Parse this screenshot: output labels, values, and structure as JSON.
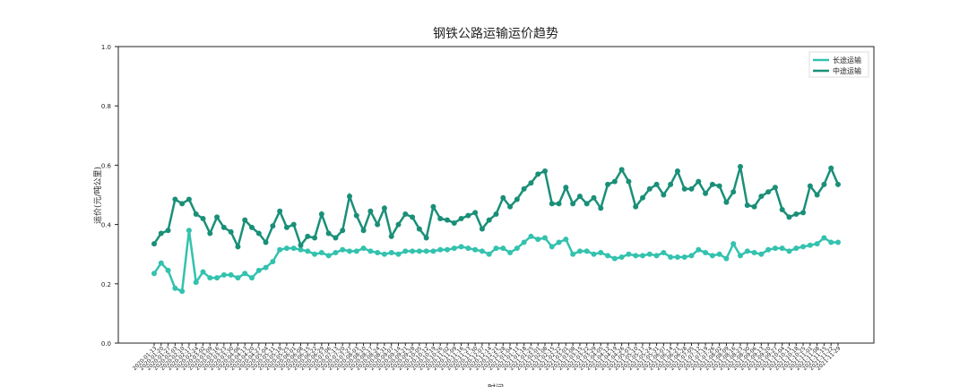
{
  "chart_data": {
    "type": "line",
    "title": "钢铁公路运输运价趋势",
    "x_label": "时间",
    "y_label": "运价(元/吨公里)",
    "categories": [
      "2020-01-13",
      "2020-01-20",
      "2020-01-27",
      "2020-02-03",
      "2020-02-10",
      "2020-02-17",
      "2020-02-24",
      "2020-03-02",
      "2020-03-09",
      "2020-03-16",
      "2020-03-23",
      "2020-03-30",
      "2020-04-06",
      "2020-04-13",
      "2020-04-20",
      "2020-04-27",
      "2020-05-04",
      "2020-05-11",
      "2020-05-18",
      "2020-05-25",
      "2020-06-01",
      "2020-06-08",
      "2020-06-15",
      "2020-06-22",
      "2020-06-29",
      "2020-07-06",
      "2020-07-13",
      "2020-07-20",
      "2020-07-27",
      "2020-08-03",
      "2020-08-10",
      "2020-08-17",
      "2020-08-24",
      "2020-08-31",
      "2020-09-07",
      "2020-09-14",
      "2020-09-21",
      "2020-09-28",
      "2020-10-05",
      "2020-10-12",
      "2020-10-19",
      "2020-10-26",
      "2020-11-02",
      "2020-11-09",
      "2020-11-16",
      "2020-11-23",
      "2020-11-30",
      "2020-12-07",
      "2020-12-14",
      "2020-12-21",
      "2020-12-28",
      "2021-01-04",
      "2021-01-11",
      "2021-01-18",
      "2021-01-25",
      "2021-02-01",
      "2021-02-08",
      "2021-02-15",
      "2021-02-22",
      "2021-03-01",
      "2021-03-08",
      "2021-03-15",
      "2021-03-22",
      "2021-03-29",
      "2021-04-05",
      "2021-04-12",
      "2021-04-19",
      "2021-04-26",
      "2021-05-03",
      "2021-05-10",
      "2021-05-17",
      "2021-05-24",
      "2021-05-31",
      "2021-06-07",
      "2021-06-14",
      "2021-06-21",
      "2021-06-28",
      "2021-07-05",
      "2021-07-12",
      "2021-07-19",
      "2021-07-26",
      "2021-08-02",
      "2021-08-09",
      "2021-08-16",
      "2021-08-23",
      "2021-08-30",
      "2021-09-06",
      "2021-09-13",
      "2021-09-20",
      "2021-09-27",
      "2021-10-04",
      "2021-10-11",
      "2021-10-18",
      "2021-10-25",
      "2021-11-01",
      "2021-11-08",
      "2021-11-15",
      "2021-11-22",
      "2021-11-29"
    ],
    "series": [
      {
        "name": "长途运输",
        "color": "#33c2ae",
        "values": [
          0.235,
          0.27,
          0.245,
          0.185,
          0.175,
          0.38,
          0.205,
          0.24,
          0.22,
          0.22,
          0.23,
          0.23,
          0.22,
          0.235,
          0.22,
          0.245,
          0.255,
          0.275,
          0.315,
          0.32,
          0.32,
          0.315,
          0.31,
          0.3,
          0.305,
          0.295,
          0.305,
          0.315,
          0.31,
          0.31,
          0.32,
          0.31,
          0.305,
          0.3,
          0.305,
          0.3,
          0.31,
          0.31,
          0.31,
          0.31,
          0.31,
          0.315,
          0.315,
          0.32,
          0.325,
          0.32,
          0.315,
          0.31,
          0.3,
          0.32,
          0.32,
          0.305,
          0.32,
          0.34,
          0.36,
          0.35,
          0.355,
          0.325,
          0.34,
          0.35,
          0.3,
          0.31,
          0.31,
          0.3,
          0.305,
          0.295,
          0.285,
          0.29,
          0.3,
          0.295,
          0.295,
          0.3,
          0.295,
          0.305,
          0.29,
          0.29,
          0.29,
          0.295,
          0.315,
          0.305,
          0.295,
          0.3,
          0.285,
          0.335,
          0.295,
          0.31,
          0.305,
          0.3,
          0.315,
          0.32,
          0.32,
          0.31,
          0.32,
          0.325,
          0.33,
          0.335,
          0.355,
          0.34,
          0.34
        ]
      },
      {
        "name": "中途运输",
        "color": "#1a8f78",
        "values": [
          0.335,
          0.37,
          0.38,
          0.485,
          0.47,
          0.485,
          0.435,
          0.42,
          0.37,
          0.425,
          0.39,
          0.375,
          0.325,
          0.415,
          0.39,
          0.37,
          0.34,
          0.395,
          0.445,
          0.39,
          0.4,
          0.33,
          0.36,
          0.355,
          0.435,
          0.37,
          0.355,
          0.38,
          0.495,
          0.43,
          0.38,
          0.445,
          0.4,
          0.455,
          0.36,
          0.4,
          0.435,
          0.425,
          0.385,
          0.355,
          0.46,
          0.42,
          0.415,
          0.405,
          0.42,
          0.43,
          0.44,
          0.385,
          0.415,
          0.435,
          0.49,
          0.46,
          0.485,
          0.52,
          0.54,
          0.57,
          0.58,
          0.47,
          0.47,
          0.525,
          0.47,
          0.495,
          0.47,
          0.49,
          0.455,
          0.535,
          0.545,
          0.585,
          0.545,
          0.46,
          0.49,
          0.52,
          0.535,
          0.5,
          0.535,
          0.58,
          0.52,
          0.52,
          0.545,
          0.505,
          0.535,
          0.53,
          0.475,
          0.51,
          0.595,
          0.465,
          0.46,
          0.495,
          0.51,
          0.525,
          0.45,
          0.425,
          0.435,
          0.44,
          0.53,
          0.5,
          0.535,
          0.59,
          0.535
        ]
      }
    ],
    "ylim": [
      0,
      1
    ],
    "yticks": [
      {
        "value": 0,
        "label": "0.0"
      },
      0.2,
      0.4,
      0.6,
      0.8,
      {
        "value": 1,
        "label": "1.0"
      }
    ],
    "legend": "upper right",
    "grid": false
  }
}
